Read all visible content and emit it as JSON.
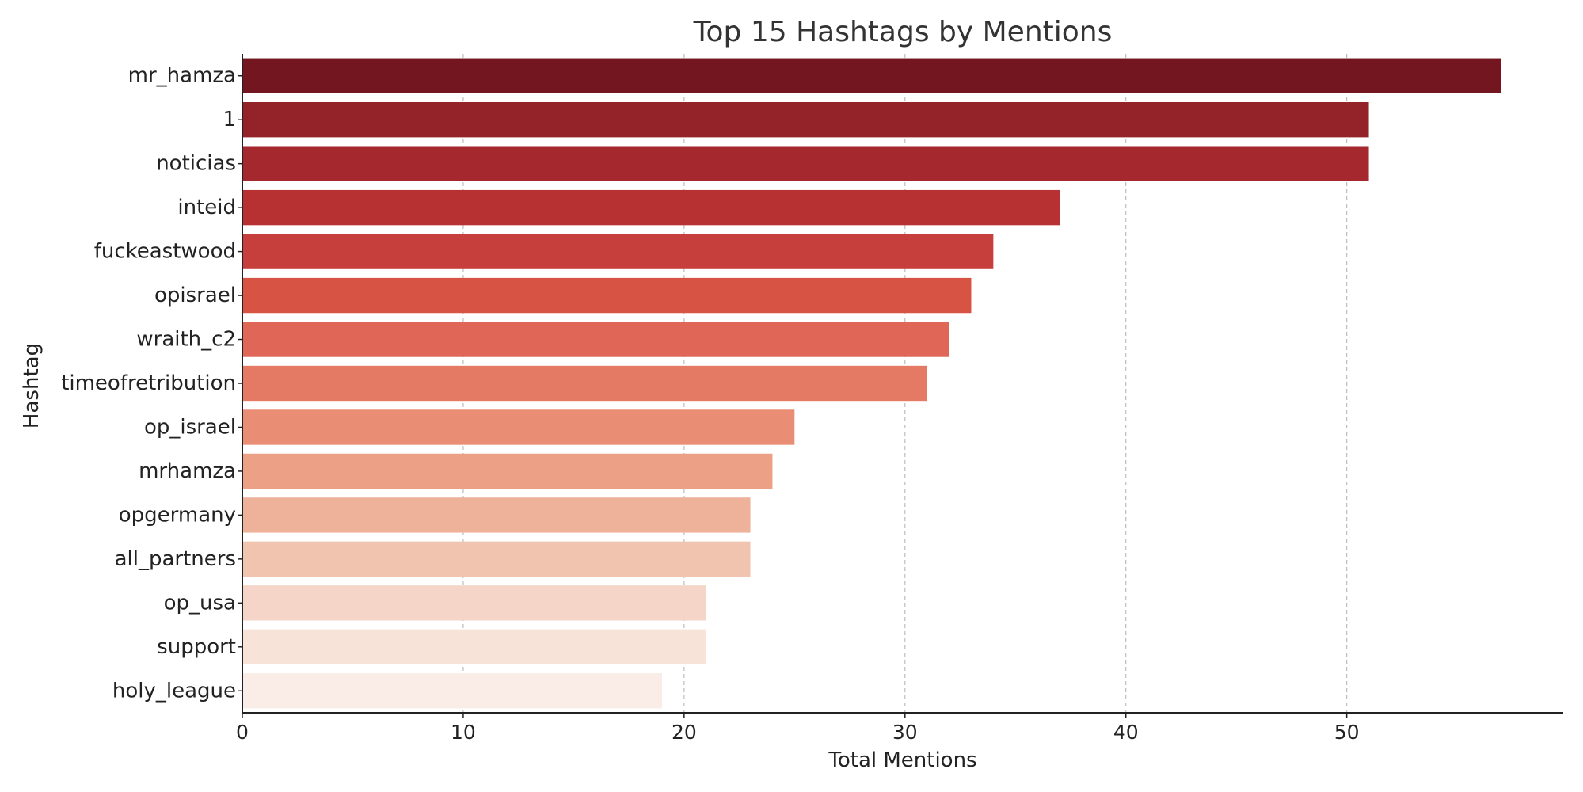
{
  "chart_data": {
    "type": "bar",
    "orientation": "horizontal",
    "title": "Top 15 Hashtags by Mentions",
    "xlabel": "Total Mentions",
    "ylabel": "Hashtag",
    "xlim": [
      0,
      59.8
    ],
    "xticks": [
      0,
      10,
      20,
      30,
      40,
      50
    ],
    "grid": "x-dashed",
    "legend": "none",
    "categories": [
      "mr_hamza",
      "1",
      "noticias",
      "inteid",
      "fuckeastwood",
      "opisrael",
      "wraith_c2",
      "timeofretribution",
      "op_israel",
      "mrhamza",
      "opgermany",
      "all_partners",
      "op_usa",
      "support",
      "holy_league"
    ],
    "values": [
      57,
      51,
      51,
      37,
      34,
      33,
      32,
      31,
      25,
      24,
      23,
      23,
      21,
      21,
      19
    ],
    "colors": [
      "#73161f",
      "#932328",
      "#a4282d",
      "#b73133",
      "#c63f3d",
      "#d75445",
      "#e06757",
      "#e57a64",
      "#e98d74",
      "#eca187",
      "#eeb29a",
      "#f1c4af",
      "#f4d5c7",
      "#f7e3d8",
      "#faece6"
    ]
  }
}
